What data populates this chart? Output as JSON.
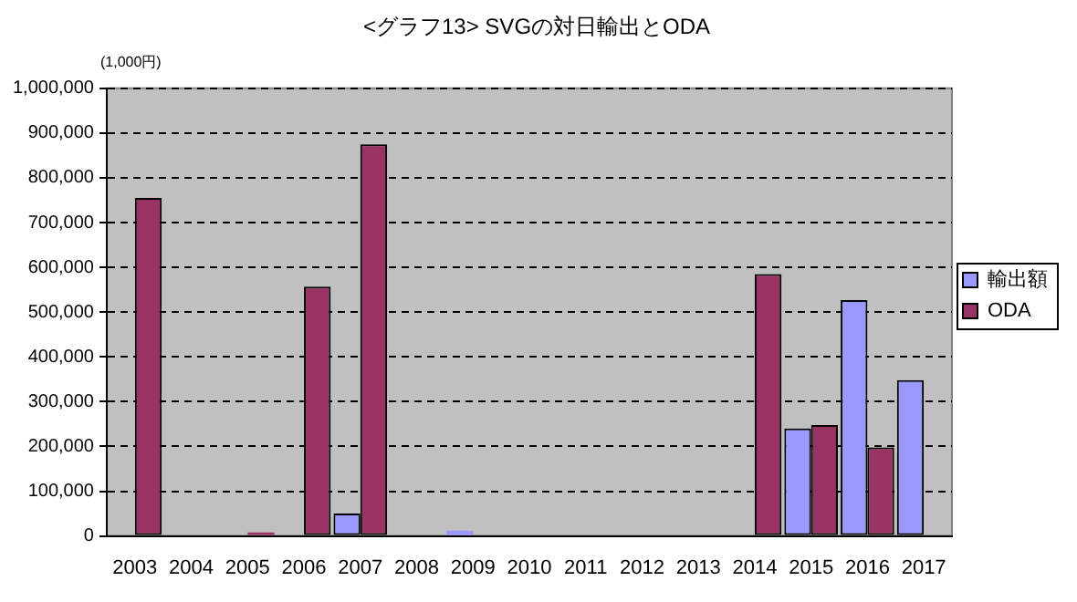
{
  "chart_data": {
    "type": "bar",
    "title": "<グラフ13> SVGの対日輸出とODA",
    "annotations": [
      "(1,000円)"
    ],
    "categories": [
      "2003",
      "2004",
      "2005",
      "2006",
      "2007",
      "2008",
      "2009",
      "2010",
      "2011",
      "2012",
      "2013",
      "2014",
      "2015",
      "2016",
      "2017"
    ],
    "series": [
      {
        "name": "輸出額",
        "color": "#9999ff",
        "values": [
          null,
          null,
          null,
          null,
          50000,
          null,
          12000,
          null,
          null,
          null,
          null,
          null,
          240000,
          527000,
          348000
        ]
      },
      {
        "name": "ODA",
        "color": "#993366",
        "values": [
          755000,
          null,
          8000,
          557000,
          875000,
          null,
          null,
          null,
          null,
          null,
          null,
          585000,
          248000,
          198000,
          null
        ]
      }
    ],
    "ylim": [
      0,
      1000000
    ],
    "yticks": [
      0,
      {
        "value": 100000,
        "label": "100,000"
      },
      {
        "value": 200000,
        "label": "200,000"
      },
      {
        "value": 300000,
        "label": "300,000"
      },
      {
        "value": 400000,
        "label": "400,000"
      },
      {
        "value": 500000,
        "label": "500,000"
      },
      {
        "value": 600000,
        "label": "600,000"
      },
      {
        "value": 700000,
        "label": "700,000"
      },
      {
        "value": 800000,
        "label": "800,000"
      },
      {
        "value": 900000,
        "label": "900,000"
      },
      {
        "value": 1000000,
        "label": "1,000,000"
      }
    ],
    "grid": "y",
    "legend": "right"
  }
}
